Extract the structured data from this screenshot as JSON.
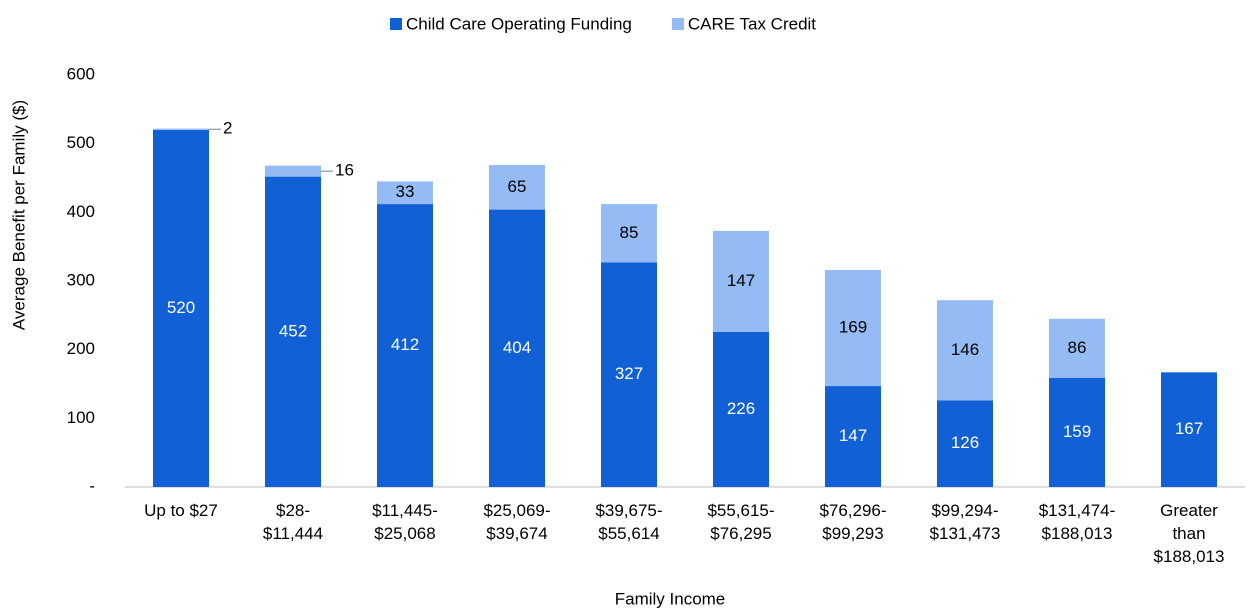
{
  "chart_data": {
    "type": "stacked_bar",
    "x_label": "Family Income",
    "y_label": "Average Benefit per  Family ($)",
    "categories": [
      [
        "Up to $27"
      ],
      [
        "$28-",
        "$11,444"
      ],
      [
        "$11,445-",
        "$25,068"
      ],
      [
        "$25,069-",
        "$39,674"
      ],
      [
        "$39,675-",
        "$55,614"
      ],
      [
        "$55,615-",
        "$76,295"
      ],
      [
        "$76,296-",
        "$99,293"
      ],
      [
        "$99,294-",
        "$131,473"
      ],
      [
        "$131,474-",
        "$188,013"
      ],
      [
        "Greater",
        "than",
        "$188,013"
      ]
    ],
    "series": [
      {
        "name": "Child Care Operating Funding",
        "color": "#1160d6",
        "values": [
          520,
          452,
          412,
          404,
          327,
          226,
          147,
          126,
          159,
          167
        ]
      },
      {
        "name": "CARE Tax Credit",
        "color": "#94bbf3",
        "values": [
          2,
          16,
          33,
          65,
          85,
          147,
          169,
          146,
          86,
          null
        ]
      }
    ],
    "ylim": [
      0,
      600
    ],
    "yticks": [
      {
        "value": 0,
        "label": "-"
      },
      100,
      200,
      300,
      400,
      500,
      600
    ],
    "legend": "top"
  }
}
